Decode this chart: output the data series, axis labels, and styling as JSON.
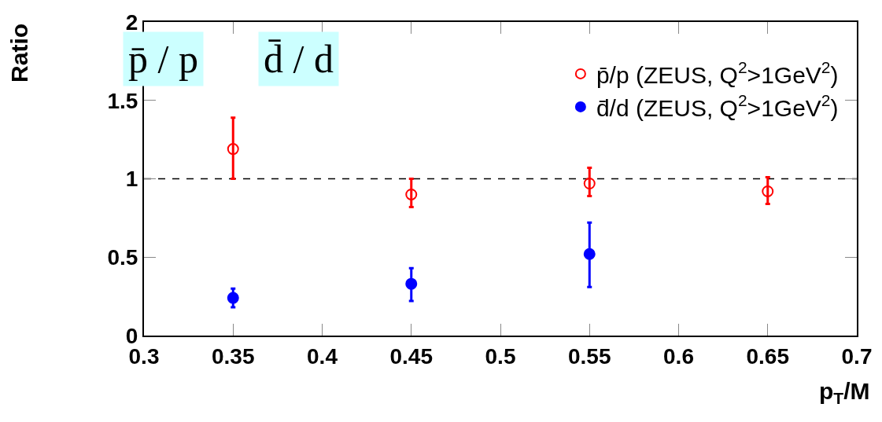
{
  "chart_data": {
    "type": "scatter",
    "xlabel": "p$_{T}$/M",
    "ylabel": "Ratio",
    "x": [
      0.35,
      0.45,
      0.55,
      0.65
    ],
    "series": [
      {
        "name": "p̄/p (ZEUS, Q$^{2}$>1GeV$^{2}$)",
        "color": "#ff0000",
        "marker": "circle-open",
        "values": [
          1.19,
          0.9,
          0.97,
          0.92
        ],
        "errors": [
          [
            1.0,
            1.39
          ],
          [
            0.82,
            1.0
          ],
          [
            0.89,
            1.07
          ],
          [
            0.84,
            1.01
          ]
        ]
      },
      {
        "name": "d̄/d (ZEUS, Q$^{2}$>1GeV$^{2}$)",
        "color": "#0000ff",
        "marker": "circle",
        "values": [
          0.24,
          0.33,
          0.52,
          null
        ],
        "errors": [
          [
            0.18,
            0.3
          ],
          [
            0.22,
            0.43
          ],
          [
            0.31,
            0.72
          ],
          null
        ]
      }
    ],
    "annotations": [
      "p̄ / p",
      "d̄ / d"
    ],
    "xlim": [
      0.3,
      0.7
    ],
    "xticks": [
      0.3,
      0.35,
      0.4,
      0.45,
      0.5,
      0.55,
      0.6,
      0.65,
      0.7
    ],
    "ylim": [
      0,
      2
    ],
    "yticks": [
      0,
      0.5,
      1,
      1.5,
      2
    ],
    "ref_lines": [
      {
        "axis": "y",
        "value": 1,
        "color": "#000000",
        "line_style": "dashed"
      }
    ],
    "legend": "top right",
    "grid": false
  }
}
